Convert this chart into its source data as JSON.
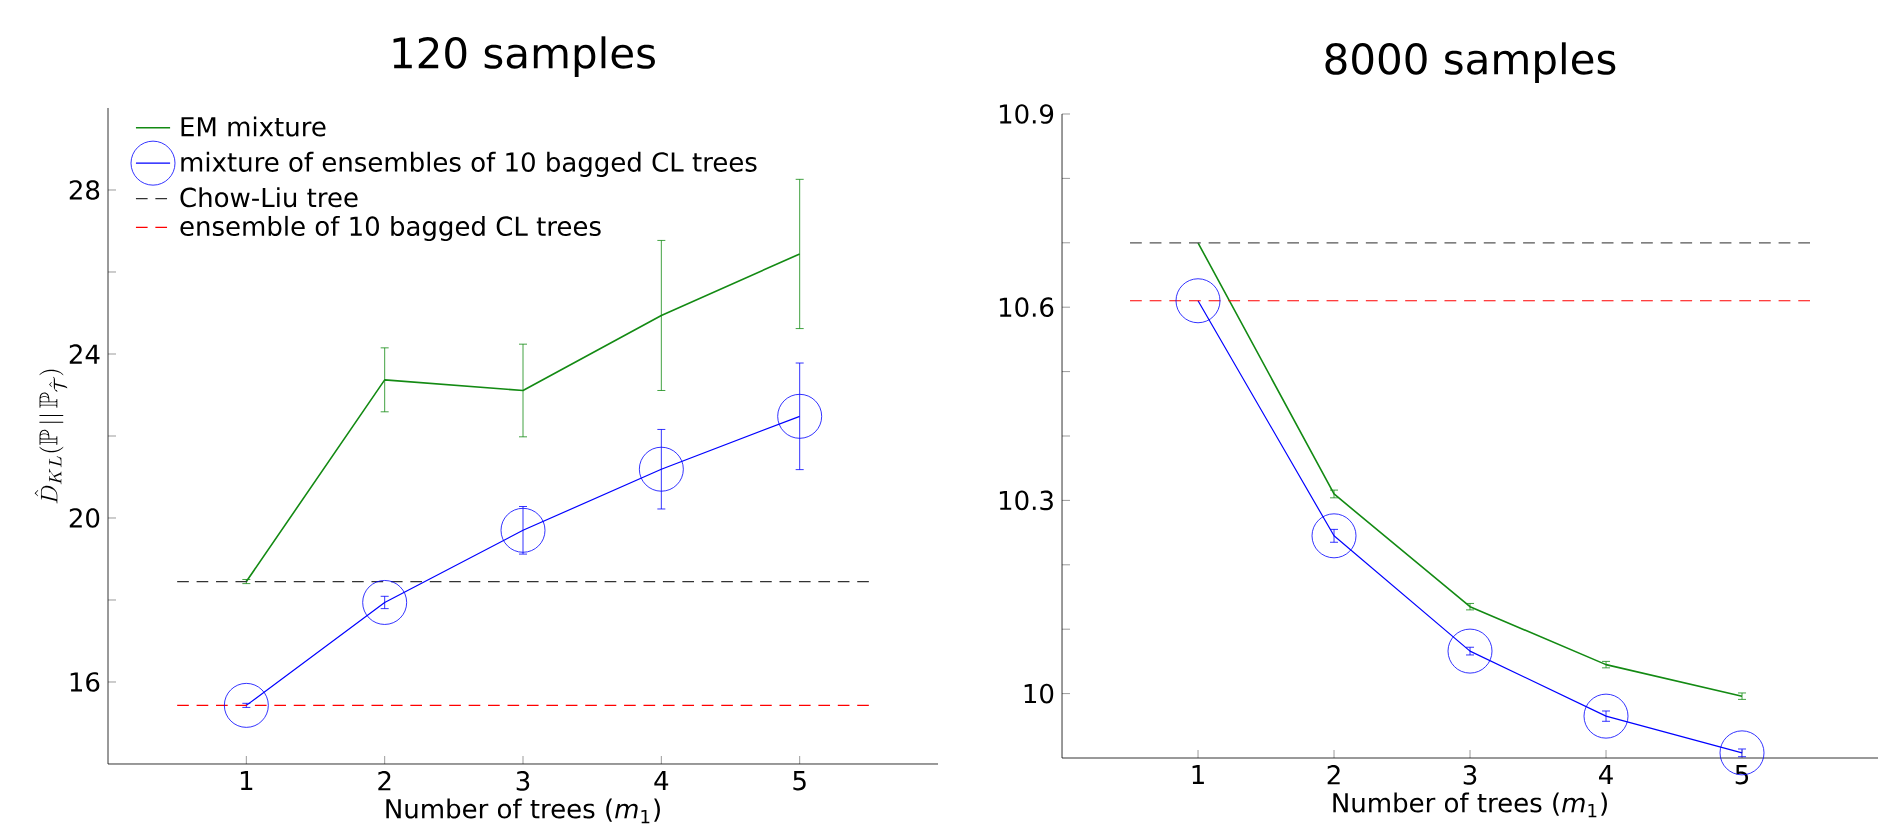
{
  "chart_data": [
    {
      "type": "line",
      "title": "120 samples",
      "xlabel": "Number of trees (*m*$_{1}$)",
      "ylabel": "\\hat{D}_{KL}(\\mathbb{P}\\,||\\,\\mathbb{P}_{\\hat{\\mathcal{T}}})",
      "xlim": [
        0,
        6
      ],
      "xticks": [
        1,
        2,
        3,
        4,
        5
      ],
      "ylim": [
        14,
        30
      ],
      "yticks": [
        16,
        {
          "value": 18,
          "label": null
        },
        20,
        {
          "value": 22,
          "label": null
        },
        24,
        {
          "value": 26,
          "label": null
        },
        28
      ],
      "legend": "top left",
      "grid": false,
      "series": [
        {
          "name": "EM mixture",
          "color": "#138a13",
          "marker": "none",
          "line_style": "solid",
          "x": [
            1,
            2,
            3,
            4,
            5
          ],
          "values": [
            18.45,
            23.37,
            23.11,
            24.94,
            26.44
          ],
          "errors": [
            0.05,
            0.78,
            1.13,
            1.83,
            1.82
          ]
        },
        {
          "name": "mixture of ensembles of 10 bagged CL trees",
          "color": "#0000ff",
          "marker": "circle",
          "line_style": "solid",
          "x": [
            1,
            2,
            3,
            4,
            5
          ],
          "values": [
            15.43,
            17.94,
            19.7,
            21.19,
            22.48
          ],
          "errors": [
            0.05,
            0.15,
            0.58,
            0.97,
            1.3
          ]
        },
        {
          "name": "Chow-Liu tree",
          "color": "#333333",
          "marker": "none",
          "line_style": "dashed",
          "x": [
            0.5,
            5.5
          ],
          "values": [
            18.45,
            18.45
          ]
        },
        {
          "name": "ensemble of 10 bagged CL trees",
          "color": "#ff0000",
          "marker": "none",
          "line_style": "dashed",
          "x": [
            0.5,
            5.5
          ],
          "values": [
            15.43,
            15.43
          ]
        }
      ]
    },
    {
      "type": "line",
      "title": "8000 samples",
      "xlabel": "Number of trees (*m*$_{1}$)",
      "xlim": [
        0,
        6
      ],
      "xticks": [
        1,
        2,
        3,
        4,
        5
      ],
      "ylim": [
        9.9,
        10.9
      ],
      "yticks": [
        10,
        {
          "value": 10.1,
          "label": null
        },
        {
          "value": 10.2,
          "label": null
        },
        10.3,
        {
          "value": 10.4,
          "label": null
        },
        {
          "value": 10.5,
          "label": null
        },
        10.6,
        {
          "value": 10.7,
          "label": null
        },
        {
          "value": 10.8,
          "label": null
        },
        10.9
      ],
      "grid": false,
      "series": [
        {
          "color": "#138a13",
          "marker": "none",
          "line_style": "solid",
          "x": [
            1,
            2,
            3,
            4,
            5
          ],
          "values": [
            10.7,
            10.31,
            10.135,
            10.045,
            9.996
          ],
          "errors": [
            null,
            0.006,
            0.005,
            0.005,
            0.005
          ]
        },
        {
          "color": "#0000ff",
          "marker": "circle",
          "line_style": "solid",
          "x": [
            1,
            2,
            3,
            4,
            5
          ],
          "values": [
            10.61,
            10.245,
            10.066,
            9.965,
            9.908
          ],
          "errors": [
            null,
            0.01,
            0.006,
            0.008,
            0.006
          ]
        },
        {
          "color": "#555555",
          "marker": "none",
          "line_style": "dashed",
          "x": [
            0.5,
            5.5
          ],
          "values": [
            10.7,
            10.7
          ]
        },
        {
          "color": "#ff0000",
          "marker": "none",
          "line_style": "dashed",
          "x": [
            0.5,
            5.5
          ],
          "values": [
            10.61,
            10.61
          ]
        }
      ]
    }
  ]
}
